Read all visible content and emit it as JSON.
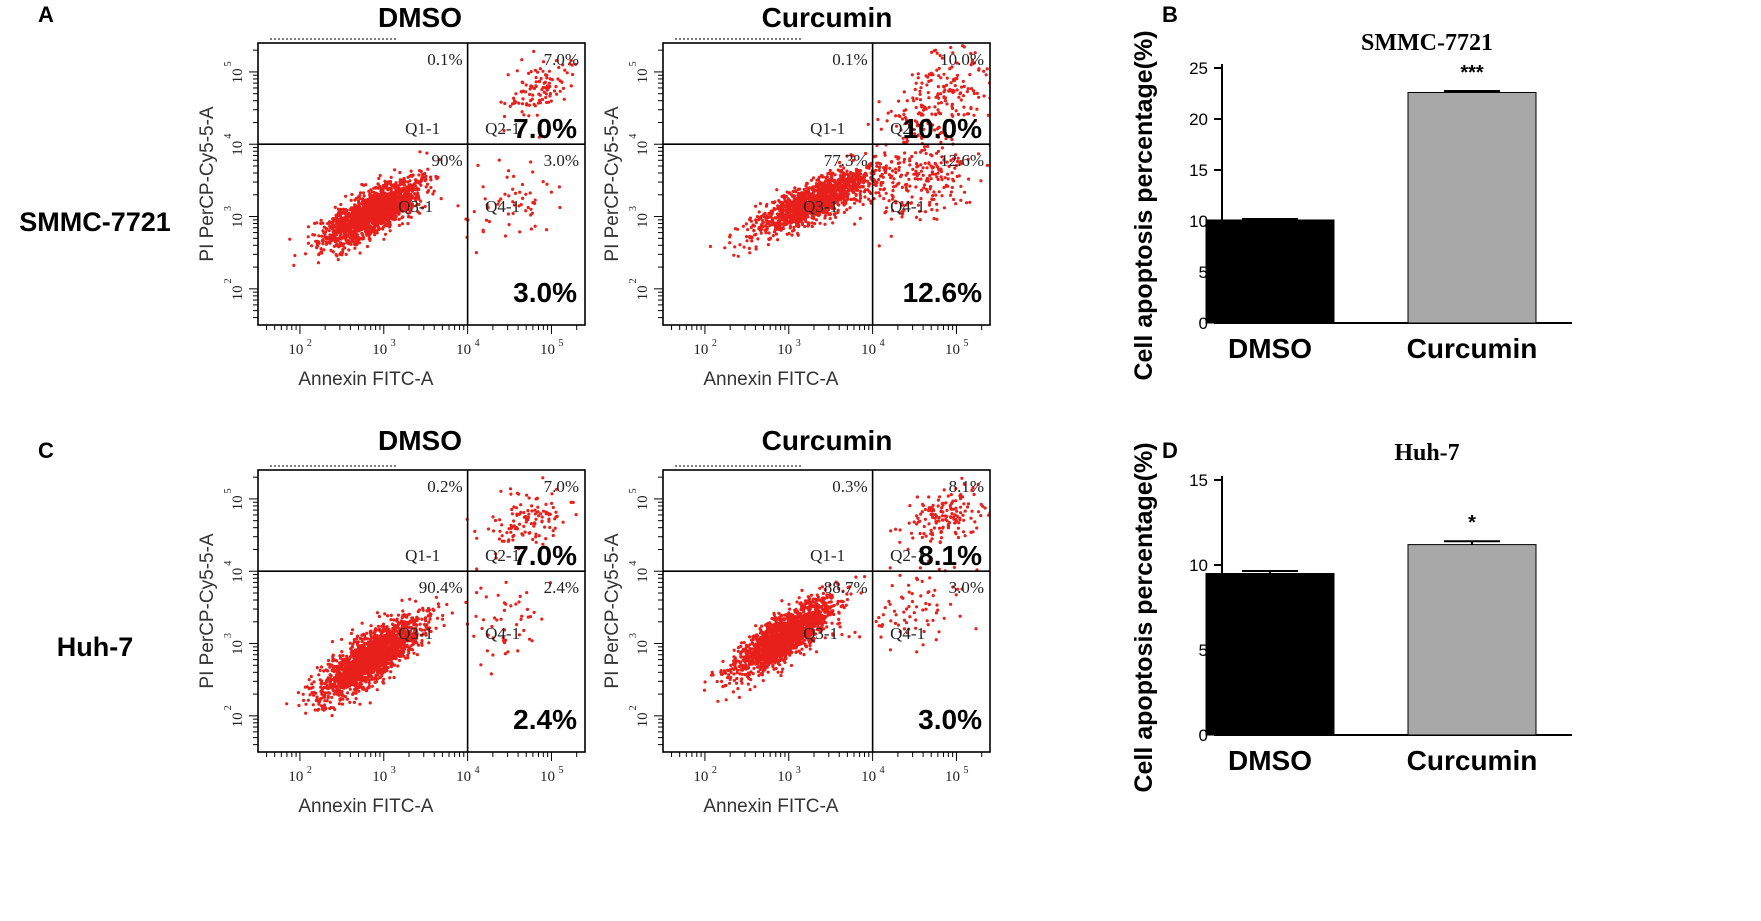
{
  "panel_letters": {
    "a": "A",
    "b": "B",
    "c": "C",
    "d": "D"
  },
  "row_labels": {
    "top": "SMMC-7721",
    "bottom": "Huh-7"
  },
  "colors": {
    "dots": "#e8201c",
    "dmso_bar": "#000000",
    "curcumin_bar": "#a8a8a8",
    "frame": "#000000"
  },
  "chart_data": [
    {
      "id": "A1",
      "type": "scatter",
      "cell_line": "SMMC-7721",
      "title": "DMSO",
      "xlabel": "Annexin FITC-A",
      "ylabel": "PI PerCP-Cy5-5-A",
      "x_ticks": [
        "10",
        "10",
        "10",
        "10"
      ],
      "x_exps": [
        "2",
        "3",
        "4",
        "5"
      ],
      "y_ticks": [
        "10",
        "10",
        "10",
        "10"
      ],
      "y_exps": [
        "2",
        "3",
        "4",
        "5"
      ],
      "quadrants": {
        "q1": "Q1-1",
        "q2": "Q2-1",
        "q3": "Q3-1",
        "q4": "Q4-1"
      },
      "quadrant_pcts": {
        "q1": "0.1%",
        "q2": "7.0%",
        "q3": "90%",
        "q4": "3.0%"
      },
      "big_labels": {
        "q2": "7.0%",
        "q4": "3.0%"
      },
      "gate_log": {
        "x": 4.0,
        "y": 4.0
      },
      "axis_log_range": {
        "x": [
          1.5,
          5.4
        ],
        "y": [
          1.5,
          5.4
        ]
      },
      "clusters": [
        {
          "n": 1800,
          "mx": 2.85,
          "my": 3.05,
          "sx": 0.28,
          "sy": 0.22,
          "rho": 0.75
        },
        {
          "n": 60,
          "mx": 4.55,
          "my": 3.2,
          "sx": 0.3,
          "sy": 0.3,
          "rho": 0.3
        },
        {
          "n": 110,
          "mx": 4.85,
          "my": 4.75,
          "sx": 0.22,
          "sy": 0.22,
          "rho": 0.5
        }
      ]
    },
    {
      "id": "A2",
      "type": "scatter",
      "cell_line": "SMMC-7721",
      "title": "Curcumin",
      "xlabel": "Annexin FITC-A",
      "ylabel": "PI PerCP-Cy5-5-A",
      "x_ticks": [
        "10",
        "10",
        "10",
        "10"
      ],
      "x_exps": [
        "2",
        "3",
        "4",
        "5"
      ],
      "y_ticks": [
        "10",
        "10",
        "10",
        "10"
      ],
      "y_exps": [
        "2",
        "3",
        "4",
        "5"
      ],
      "quadrants": {
        "q1": "Q1-1",
        "q2": "Q2-1",
        "q3": "Q3-1",
        "q4": "Q4-1"
      },
      "quadrant_pcts": {
        "q1": "0.1%",
        "q2": "10.0%",
        "q3": "77.3%",
        "q4": "12.6%"
      },
      "big_labels": {
        "q2": "10.0%",
        "q4": "12.6%"
      },
      "gate_log": {
        "x": 4.0,
        "y": 4.0
      },
      "axis_log_range": {
        "x": [
          1.5,
          5.4
        ],
        "y": [
          1.5,
          5.4
        ]
      },
      "clusters": [
        {
          "n": 1400,
          "mx": 3.3,
          "my": 3.2,
          "sx": 0.35,
          "sy": 0.22,
          "rho": 0.8
        },
        {
          "n": 220,
          "mx": 4.6,
          "my": 3.5,
          "sx": 0.35,
          "sy": 0.3,
          "rho": 0.3
        },
        {
          "n": 220,
          "mx": 4.8,
          "my": 4.6,
          "sx": 0.3,
          "sy": 0.35,
          "rho": 0.4
        }
      ]
    },
    {
      "id": "C1",
      "type": "scatter",
      "cell_line": "Huh-7",
      "title": "DMSO",
      "xlabel": "Annexin FITC-A",
      "ylabel": "PI PerCP-Cy5-5-A",
      "x_ticks": [
        "10",
        "10",
        "10",
        "10"
      ],
      "x_exps": [
        "2",
        "3",
        "4",
        "5"
      ],
      "y_ticks": [
        "10",
        "10",
        "10",
        "10"
      ],
      "y_exps": [
        "2",
        "3",
        "4",
        "5"
      ],
      "quadrants": {
        "q1": "Q1-1",
        "q2": "Q2-1",
        "q3": "Q3-1",
        "q4": "Q4-1"
      },
      "quadrant_pcts": {
        "q1": "0.2%",
        "q2": "7.0%",
        "q3": "90.4%",
        "q4": "2.4%"
      },
      "big_labels": {
        "q2": "7.0%",
        "q4": "2.4%"
      },
      "gate_log": {
        "x": 4.0,
        "y": 4.0
      },
      "axis_log_range": {
        "x": [
          1.5,
          5.4
        ],
        "y": [
          1.5,
          5.4
        ]
      },
      "clusters": [
        {
          "n": 1900,
          "mx": 2.85,
          "my": 2.8,
          "sx": 0.3,
          "sy": 0.28,
          "rho": 0.8
        },
        {
          "n": 50,
          "mx": 4.55,
          "my": 3.3,
          "sx": 0.3,
          "sy": 0.3,
          "rho": 0.3
        },
        {
          "n": 120,
          "mx": 4.7,
          "my": 4.7,
          "sx": 0.25,
          "sy": 0.22,
          "rho": 0.4
        }
      ]
    },
    {
      "id": "C2",
      "type": "scatter",
      "cell_line": "Huh-7",
      "title": "Curcumin",
      "xlabel": "Annexin FITC-A",
      "ylabel": "PI PerCP-Cy5-5-A",
      "x_ticks": [
        "10",
        "10",
        "10",
        "10"
      ],
      "x_exps": [
        "2",
        "3",
        "4",
        "5"
      ],
      "y_ticks": [
        "10",
        "10",
        "10",
        "10"
      ],
      "y_exps": [
        "2",
        "3",
        "4",
        "5"
      ],
      "quadrants": {
        "q1": "Q1-1",
        "q2": "Q2-1",
        "q3": "Q3-1",
        "q4": "Q4-1"
      },
      "quadrant_pcts": {
        "q1": "0.3%",
        "q2": "8.1%",
        "q3": "88.7%",
        "q4": "3.0%"
      },
      "big_labels": {
        "q2": "8.1%",
        "q4": "3.0%"
      },
      "gate_log": {
        "x": 4.0,
        "y": 4.0
      },
      "axis_log_range": {
        "x": [
          1.5,
          5.4
        ],
        "y": [
          1.5,
          5.4
        ]
      },
      "clusters": [
        {
          "n": 1800,
          "mx": 2.95,
          "my": 3.1,
          "sx": 0.28,
          "sy": 0.25,
          "rho": 0.8
        },
        {
          "n": 80,
          "mx": 4.55,
          "my": 3.5,
          "sx": 0.3,
          "sy": 0.3,
          "rho": 0.3
        },
        {
          "n": 160,
          "mx": 4.85,
          "my": 4.75,
          "sx": 0.25,
          "sy": 0.2,
          "rho": 0.4
        }
      ]
    },
    {
      "id": "B",
      "type": "bar",
      "title": "SMMC-7721",
      "ylabel": "Cell apoptosis percentage(%)",
      "categories": [
        "DMSO",
        "Curcumin"
      ],
      "values": [
        10.1,
        22.6
      ],
      "errors": [
        0.1,
        0.15
      ],
      "significance": [
        "",
        "***"
      ],
      "ylim": [
        0,
        25
      ],
      "yticks": [
        0,
        5,
        10,
        15,
        20,
        25
      ],
      "ytick_labels": [
        "0",
        "5",
        "10",
        "15",
        "20",
        "25"
      ]
    },
    {
      "id": "D",
      "type": "bar",
      "title": "Huh-7",
      "ylabel": "Cell apoptosis percentage(%)",
      "categories": [
        "DMSO",
        "Curcumin"
      ],
      "values": [
        9.5,
        11.2
      ],
      "errors": [
        0.15,
        0.2
      ],
      "significance": [
        "",
        "*"
      ],
      "ylim": [
        0,
        15
      ],
      "yticks": [
        0,
        5,
        10,
        15
      ],
      "ytick_labels": [
        "0",
        "5",
        "10",
        "15"
      ]
    }
  ]
}
